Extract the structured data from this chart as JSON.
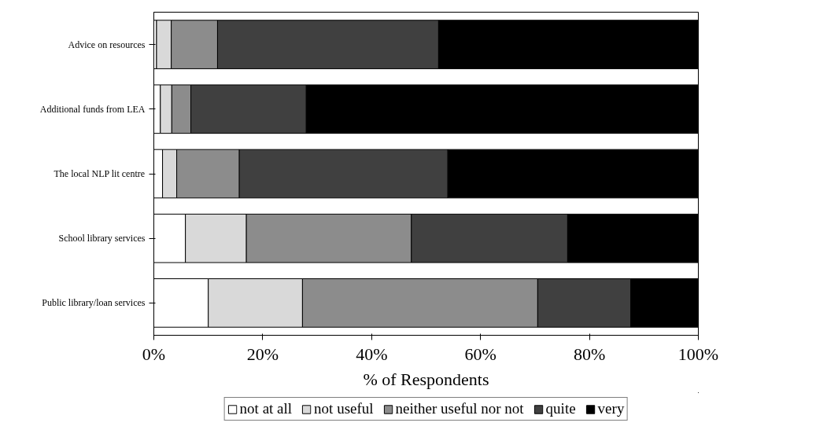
{
  "chart_data": {
    "type": "bar",
    "orientation": "horizontal",
    "stacked": true,
    "xlabel": "% of Respondents",
    "categories": [
      "Advice on resources",
      "Additional funds from LEA",
      "The local NLP lit centre",
      "School library services",
      "Public library/loan services"
    ],
    "series": [
      {
        "name": "not at all",
        "color": "#ffffff",
        "values": [
          0.5,
          1.2,
          1.6,
          5.8,
          10
        ]
      },
      {
        "name": "not useful",
        "color": "#d9d9d9",
        "values": [
          2.7,
          2.1,
          2.6,
          11.2,
          17.3
        ]
      },
      {
        "name": "neither useful nor not",
        "color": "#8c8c8c",
        "values": [
          8.5,
          3.5,
          11.5,
          30.3,
          43.2
        ]
      },
      {
        "name": "quite",
        "color": "#404040",
        "values": [
          40.6,
          21.2,
          38.3,
          28.7,
          17.1
        ]
      },
      {
        "name": "very",
        "color": "#000000",
        "values": [
          47.7,
          72,
          46,
          24,
          12.4
        ]
      }
    ],
    "xlim": [
      0,
      100
    ],
    "xticks": [
      {
        "value": 0,
        "label": "0%"
      },
      {
        "value": 20,
        "label": "20%"
      },
      {
        "value": 40,
        "label": "40%"
      },
      {
        "value": 60,
        "label": "60%"
      },
      {
        "value": 80,
        "label": "80%"
      },
      {
        "value": 100,
        "label": "100%"
      }
    ],
    "grid": false,
    "legend": "bottom"
  }
}
